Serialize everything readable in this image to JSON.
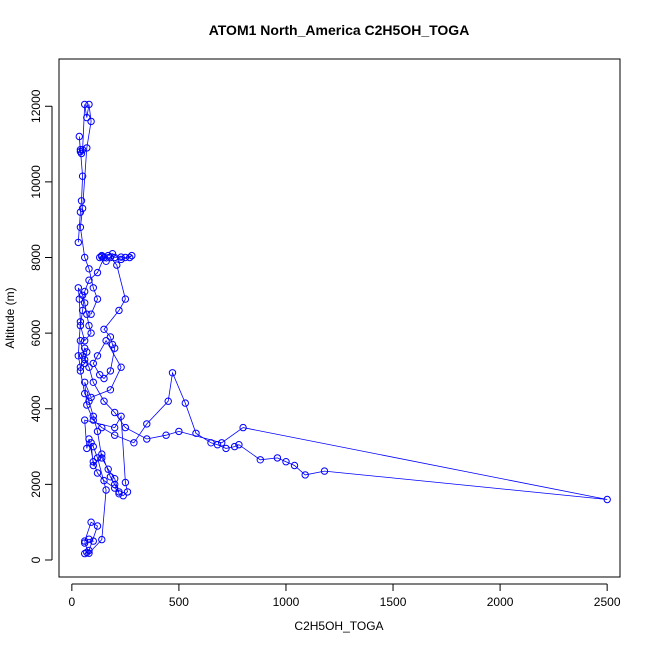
{
  "chart_data": {
    "type": "line",
    "title": "ATOM1 North_America C2H5OH_TOGA",
    "xlabel": "C2H5OH_TOGA",
    "ylabel": "Altitude (m)",
    "xlim": [
      -60,
      2560
    ],
    "ylim": [
      -450,
      13250
    ],
    "xticks": [
      0,
      500,
      1000,
      1500,
      2000,
      2500
    ],
    "xtick_labels": [
      "0",
      "500",
      "1000",
      "1500",
      "2000",
      "2500"
    ],
    "yticks": [
      0,
      2000,
      4000,
      6000,
      8000,
      10000,
      12000
    ],
    "ytick_labels": [
      "0",
      "2000",
      "4000",
      "6000",
      "8000",
      "10000",
      "12000"
    ],
    "grid": false,
    "legend": "none",
    "marker": "open-circle",
    "color": "#0000ff",
    "series": [
      {
        "x": [
          60,
          70,
          80,
          120,
          90,
          60,
          80,
          100,
          60,
          80,
          140,
          160,
          120,
          100,
          90,
          100,
          140,
          180,
          200,
          220,
          200,
          150,
          120,
          100,
          80,
          70,
          60,
          200,
          230,
          250,
          260,
          240,
          220,
          200,
          170,
          140,
          120,
          100,
          80,
          60,
          40,
          50,
          60,
          70,
          60,
          40,
          30,
          40,
          35,
          30,
          50,
          60,
          70,
          80,
          90,
          60,
          40,
          50,
          60,
          80,
          120,
          150,
          170,
          140,
          160,
          200,
          230,
          250,
          280,
          270,
          230,
          190,
          140,
          130,
          180,
          210,
          250,
          220,
          150,
          180,
          190,
          200,
          180,
          150,
          130,
          100,
          120,
          160,
          230,
          180,
          90,
          60,
          70,
          100,
          140,
          200,
          290,
          350,
          450,
          470,
          530,
          580,
          650,
          680,
          720,
          760,
          780,
          880,
          960,
          1000,
          1040,
          1090,
          1180,
          2500,
          800,
          700,
          500,
          440,
          350,
          250,
          200,
          150,
          100,
          80,
          60,
          40
        ],
        "y": [
          170,
          200,
          250,
          900,
          1000,
          500,
          550,
          500,
          450,
          180,
          540,
          1850,
          2700,
          3000,
          3100,
          2500,
          2800,
          2200,
          2000,
          1800,
          1900,
          2100,
          2300,
          2600,
          3200,
          2950,
          3700,
          3500,
          3800,
          2050,
          1800,
          1700,
          1750,
          2150,
          2400,
          2700,
          3400,
          3800,
          4200,
          4400,
          5000,
          5400,
          5600,
          5500,
          5200,
          5100,
          5400,
          6300,
          6900,
          7200,
          7000,
          6800,
          6500,
          6200,
          6000,
          5800,
          6200,
          6600,
          7100,
          7400,
          7600,
          8000,
          8050,
          8020,
          7900,
          8000,
          8010,
          8000,
          8050,
          8000,
          7950,
          8100,
          8050,
          8000,
          8000,
          7800,
          6900,
          6600,
          6100,
          5900,
          5700,
          5600,
          5000,
          4800,
          4900,
          5200,
          5400,
          5800,
          5100,
          4500,
          4300,
          4700,
          4100,
          3700,
          3500,
          3300,
          3100,
          3600,
          4200,
          4950,
          4150,
          3350,
          3100,
          3050,
          2950,
          3000,
          3050,
          2650,
          2700,
          2600,
          2500,
          2250,
          2350,
          1600,
          3500,
          3100,
          3400,
          3300,
          3200,
          3500,
          3900,
          4200,
          4700,
          5100,
          5300,
          5800
        ]
      },
      {
        "x": [
          30,
          40,
          45,
          50,
          40,
          35,
          40,
          45,
          50,
          60,
          70,
          80,
          90,
          70,
          50,
          40,
          60,
          80,
          100,
          120,
          90
        ],
        "y": [
          8400,
          9200,
          9500,
          10150,
          10850,
          11200,
          10800,
          10750,
          10850,
          12050,
          11700,
          12050,
          11600,
          10900,
          9300,
          8800,
          8000,
          7700,
          7200,
          6900,
          6500
        ]
      }
    ]
  }
}
